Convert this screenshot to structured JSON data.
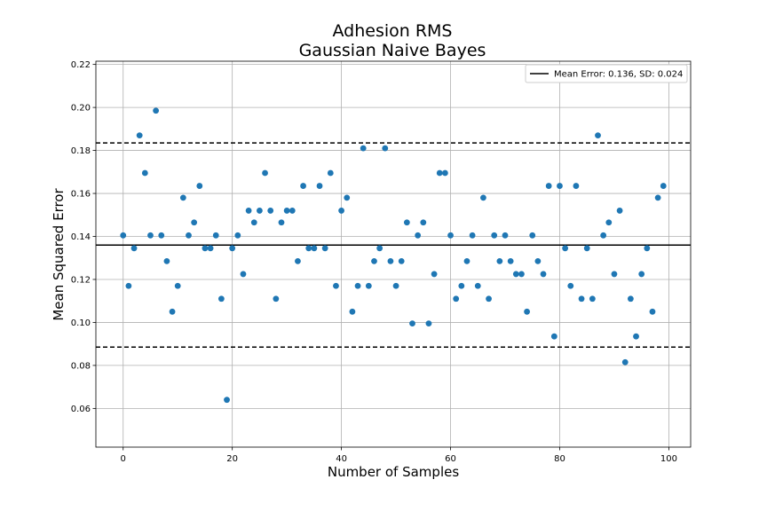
{
  "chart_data": {
    "type": "scatter",
    "title": "Adhesion RMS",
    "subtitle": "Gaussian Naive Bayes",
    "xlabel": "Number of Samples",
    "ylabel": "Mean Squared Error",
    "xlim": [
      -5,
      104
    ],
    "ylim": [
      0.042,
      0.2215
    ],
    "xticks": [
      0,
      20,
      40,
      60,
      80,
      100
    ],
    "yticks": [
      0.06,
      0.08,
      0.1,
      0.12,
      0.14,
      0.16,
      0.18,
      0.2,
      0.22
    ],
    "ytick_labels": [
      "0.06",
      "0.08",
      "0.10",
      "0.12",
      "0.14",
      "0.16",
      "0.18",
      "0.20",
      "0.22"
    ],
    "grid": true,
    "legend_position": "top-right",
    "point_color": "#1f77b4",
    "mean_line": {
      "value": 0.136,
      "label": "Mean Error: 0.136, SD: 0.024",
      "color": "#000000",
      "style": "solid"
    },
    "band_lines": [
      {
        "value": 0.1835,
        "style": "dashed",
        "color": "#000000"
      },
      {
        "value": 0.0885,
        "style": "dashed",
        "color": "#000000"
      }
    ],
    "x": [
      0,
      1,
      2,
      3,
      4,
      5,
      6,
      7,
      8,
      9,
      10,
      11,
      12,
      13,
      14,
      15,
      16,
      17,
      18,
      19,
      20,
      21,
      22,
      23,
      24,
      25,
      26,
      27,
      28,
      29,
      30,
      31,
      32,
      33,
      34,
      35,
      36,
      37,
      38,
      39,
      40,
      41,
      42,
      43,
      44,
      45,
      46,
      47,
      48,
      49,
      50,
      51,
      52,
      53,
      54,
      55,
      56,
      57,
      58,
      59,
      60,
      61,
      62,
      63,
      64,
      65,
      66,
      67,
      68,
      69,
      70,
      71,
      72,
      73,
      74,
      75,
      76,
      77,
      78,
      79,
      80,
      81,
      82,
      83,
      84,
      85,
      86,
      87,
      88,
      89,
      90,
      91,
      92,
      93,
      94,
      95,
      96,
      97,
      98,
      99
    ],
    "y": [
      0.1405,
      0.117,
      0.1345,
      0.187,
      0.1695,
      0.1405,
      0.1985,
      0.1405,
      0.1285,
      0.105,
      0.117,
      0.158,
      0.1405,
      0.1465,
      0.1635,
      0.1345,
      0.1345,
      0.1405,
      0.111,
      0.064,
      0.1345,
      0.1405,
      0.1225,
      0.152,
      0.1465,
      0.152,
      0.1695,
      0.152,
      0.111,
      0.1465,
      0.152,
      0.152,
      0.1285,
      0.1635,
      0.1345,
      0.1345,
      0.1635,
      0.1345,
      0.1695,
      0.117,
      0.152,
      0.158,
      0.105,
      0.117,
      0.181,
      0.117,
      0.1285,
      0.1345,
      0.181,
      0.1285,
      0.117,
      0.1285,
      0.1465,
      0.0995,
      0.1405,
      0.1465,
      0.0995,
      0.1225,
      0.1695,
      0.1695,
      0.1405,
      0.111,
      0.117,
      0.1285,
      0.1405,
      0.117,
      0.158,
      0.111,
      0.1405,
      0.1285,
      0.1405,
      0.1285,
      0.1225,
      0.1225,
      0.105,
      0.1405,
      0.1285,
      0.1225,
      0.1635,
      0.0935,
      0.1635,
      0.1345,
      0.117,
      0.1635,
      0.111,
      0.1345,
      0.111,
      0.187,
      0.1405,
      0.1465,
      0.1225,
      0.152,
      0.0815,
      0.111,
      0.0935,
      0.1225,
      0.1345,
      0.105,
      0.158,
      0.1635
    ]
  }
}
